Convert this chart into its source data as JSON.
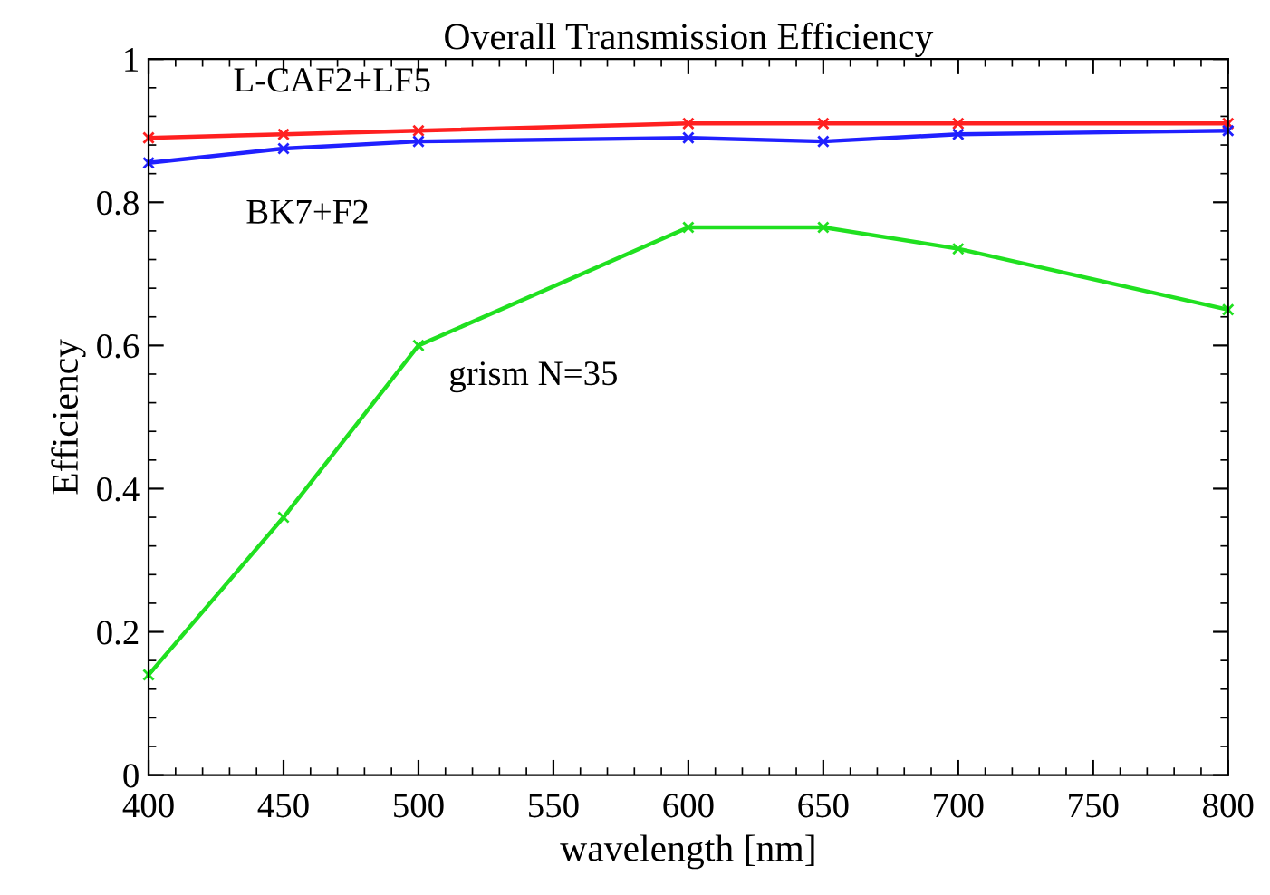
{
  "chart_data": {
    "type": "line",
    "title": "Overall Transmission Efficiency",
    "xlabel": "wavelength [nm]",
    "ylabel": "Efficiency",
    "x": [
      400,
      450,
      500,
      600,
      650,
      700,
      800
    ],
    "series": [
      {
        "name": "L-CAF2+LF5",
        "color": "#ff2020",
        "values": [
          0.89,
          0.895,
          0.9,
          0.91,
          0.91,
          0.91,
          0.91
        ]
      },
      {
        "name": "BK7+F2",
        "color": "#2020ff",
        "values": [
          0.855,
          0.875,
          0.885,
          0.89,
          0.885,
          0.895,
          0.9
        ]
      },
      {
        "name": "grism N=35",
        "color": "#20e020",
        "values": [
          0.14,
          0.36,
          0.6,
          0.765,
          0.765,
          0.735,
          0.65
        ]
      }
    ],
    "xlim": [
      400,
      800
    ],
    "ylim": [
      0,
      1
    ],
    "xticks": [
      400,
      450,
      500,
      550,
      600,
      650,
      700,
      750,
      800
    ],
    "yticks": [
      0,
      0.2,
      0.4,
      0.6,
      0.8,
      1
    ],
    "marker": "cross",
    "line_style": "solid",
    "grid": false,
    "legend": false
  }
}
